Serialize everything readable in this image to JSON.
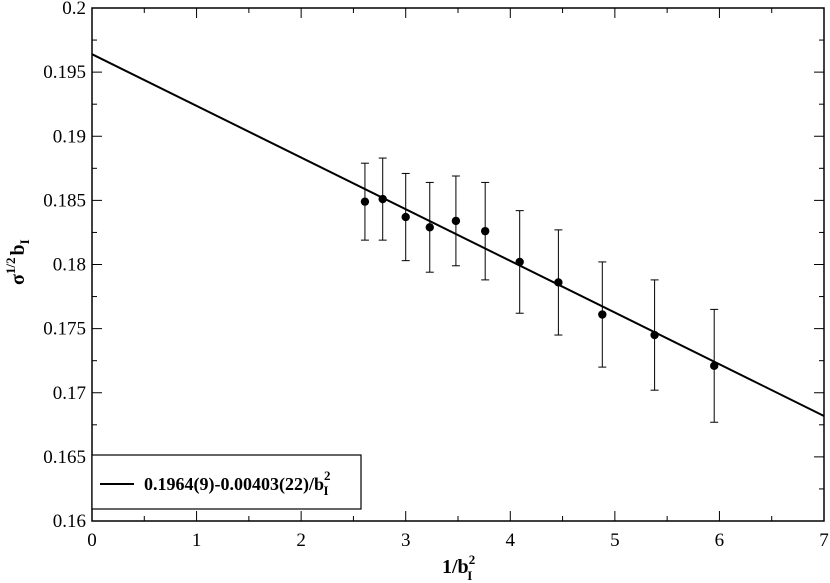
{
  "chart_data": {
    "type": "scatter",
    "x_axis": {
      "label_base": "1/b",
      "label_sub": "I",
      "label_sup": "2",
      "range": [
        0,
        7
      ],
      "tick_values": [
        0,
        1,
        2,
        3,
        4,
        5,
        6,
        7
      ],
      "tick_labels": [
        "0",
        "1",
        "2",
        "3",
        "4",
        "5",
        "6",
        "7"
      ]
    },
    "y_axis": {
      "label_base": "σ",
      "label_sup": "1/2",
      "label_b": "b",
      "label_sub": "I",
      "range": [
        0.16,
        0.2
      ],
      "tick_values": [
        0.16,
        0.165,
        0.17,
        0.175,
        0.18,
        0.185,
        0.19,
        0.195,
        0.2
      ],
      "tick_labels": [
        "0.16",
        "0.165",
        "0.17",
        "0.175",
        "0.18",
        "0.185",
        "0.19",
        "0.195",
        "0.2"
      ]
    },
    "grid": false,
    "series": [
      {
        "type": "scatter-errorbar",
        "x": [
          2.61,
          2.78,
          3.0,
          3.23,
          3.48,
          3.76,
          4.09,
          4.46,
          4.88,
          5.38,
          5.95
        ],
        "y": [
          0.1849,
          0.1851,
          0.1837,
          0.1829,
          0.1834,
          0.1826,
          0.1802,
          0.1786,
          0.1761,
          0.1745,
          0.1721
        ],
        "err": [
          0.003,
          0.0032,
          0.0034,
          0.0035,
          0.0035,
          0.0038,
          0.004,
          0.0041,
          0.0041,
          0.0043,
          0.0044
        ]
      },
      {
        "type": "line",
        "label": "0.1964(9)-0.00403(22)/b",
        "label_sub": "I",
        "label_sup": "2",
        "intercept": 0.1964,
        "slope": -0.00403
      }
    ],
    "legend_position": "bottom-left"
  }
}
